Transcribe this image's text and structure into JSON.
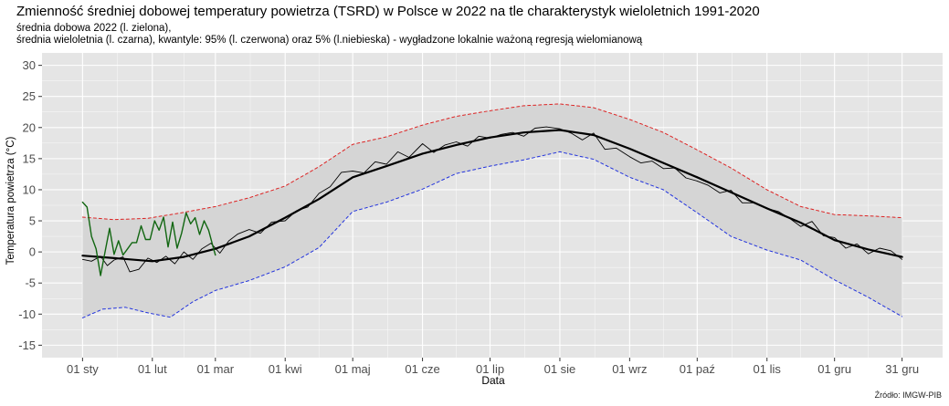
{
  "title": "Zmienność średniej dobowej temperatury powietrza (TSRD) w Polsce w 2022 na tle charakterystyk wieloletnich 1991-2020",
  "subtitle_line1": "średnia dobowa 2022 (l. zielona),",
  "subtitle_line2": "średnia wieloletnia (l. czarna), kwantyle: 95% (l. czerwona) oraz 5% (l.niebieska) - wygładzone lokalnie ważoną regresją wielomianową",
  "source": "Źródło: IMGW-PIB",
  "chart_data": {
    "type": "line",
    "xlabel": "Data",
    "ylabel": "Temperatura powietrza (°C)",
    "x_unit": "day of year 2022",
    "xlim": [
      1,
      365
    ],
    "ylim": [
      -17,
      32
    ],
    "yticks": [
      -15,
      -10,
      -5,
      0,
      5,
      10,
      15,
      20,
      25,
      30
    ],
    "xticks": [
      {
        "day": 1,
        "label": "01 sty"
      },
      {
        "day": 32,
        "label": "01 lut"
      },
      {
        "day": 60,
        "label": "01 mar"
      },
      {
        "day": 91,
        "label": "01 kwi"
      },
      {
        "day": 121,
        "label": "01 maj"
      },
      {
        "day": 152,
        "label": "01 cze"
      },
      {
        "day": 182,
        "label": "01 lip"
      },
      {
        "day": 213,
        "label": "01 sie"
      },
      {
        "day": 244,
        "label": "01 wrz"
      },
      {
        "day": 274,
        "label": "01 paź"
      },
      {
        "day": 305,
        "label": "01 lis"
      },
      {
        "day": 335,
        "label": "01 gru"
      },
      {
        "day": 365,
        "label": "31 gru"
      }
    ],
    "grid": true,
    "colors": {
      "panel": "#e5e5e5",
      "band": "#d5d5d5",
      "grid": "#ffffff",
      "q95": "#dd2222",
      "q5": "#2233dd",
      "mean": "#000000",
      "daily2022": "#116611"
    },
    "series": [
      {
        "name": "kwantyl 95%",
        "style": "dashed",
        "color": "#dd2222",
        "x": [
          1,
          15,
          30,
          45,
          60,
          75,
          91,
          106,
          121,
          136,
          152,
          167,
          182,
          197,
          213,
          228,
          244,
          259,
          274,
          289,
          305,
          320,
          335,
          350,
          365
        ],
        "y": [
          5.6,
          5.2,
          5.4,
          6.3,
          7.3,
          8.7,
          10.6,
          13.7,
          17.3,
          18.5,
          20.4,
          21.8,
          22.7,
          23.5,
          23.8,
          23.2,
          21.3,
          19.2,
          16.4,
          13.5,
          10.0,
          7.3,
          6.0,
          5.8,
          5.5
        ]
      },
      {
        "name": "kwantyl 5%",
        "style": "dashed",
        "color": "#2233dd",
        "x": [
          1,
          10,
          20,
          30,
          40,
          50,
          60,
          75,
          91,
          106,
          121,
          136,
          152,
          167,
          182,
          197,
          213,
          228,
          244,
          259,
          274,
          289,
          305,
          320,
          335,
          350,
          365
        ],
        "y": [
          -10.6,
          -9.2,
          -8.9,
          -9.8,
          -10.5,
          -8.0,
          -6.2,
          -4.6,
          -2.4,
          0.7,
          6.5,
          8.0,
          10.1,
          12.6,
          13.8,
          14.8,
          16.1,
          14.9,
          12.0,
          10.0,
          6.3,
          2.5,
          0.3,
          -1.3,
          -4.5,
          -7.3,
          -10.4
        ]
      },
      {
        "name": "średnia wieloletnia",
        "style": "solid-thick",
        "color": "#000000",
        "x": [
          1,
          15,
          32,
          46,
          60,
          75,
          91,
          106,
          121,
          136,
          152,
          167,
          182,
          197,
          213,
          228,
          244,
          259,
          274,
          289,
          305,
          320,
          335,
          350,
          365
        ],
        "y": [
          -0.6,
          -1.0,
          -1.5,
          -0.8,
          0.5,
          2.5,
          5.5,
          8.5,
          12.0,
          13.8,
          15.8,
          17.2,
          18.4,
          19.2,
          19.6,
          18.8,
          16.6,
          14.3,
          12.0,
          9.6,
          7.0,
          4.7,
          1.9,
          0.4,
          -0.8
        ]
      },
      {
        "name": "średnia wieloletnia (dzienna)",
        "style": "solid-thin",
        "color": "#000000",
        "x": [
          1,
          5,
          9,
          12,
          15,
          19,
          22,
          26,
          30,
          34,
          38,
          42,
          46,
          50,
          54,
          58,
          62,
          66,
          70,
          75,
          80,
          85,
          91,
          96,
          101,
          106,
          111,
          116,
          121,
          126,
          131,
          136,
          141,
          146,
          152,
          157,
          162,
          167,
          172,
          177,
          182,
          187,
          192,
          197,
          202,
          207,
          213,
          218,
          223,
          228,
          233,
          238,
          244,
          249,
          254,
          259,
          264,
          269,
          274,
          279,
          284,
          289,
          294,
          299,
          305,
          310,
          315,
          320,
          325,
          330,
          335,
          340,
          345,
          350,
          355,
          360,
          365
        ],
        "y": [
          -1.2,
          -1.5,
          -0.7,
          -2.2,
          -1.3,
          -0.8,
          -3.2,
          -2.8,
          -1.0,
          -1.7,
          -0.7,
          -1.9,
          0.0,
          -1.2,
          0.5,
          1.4,
          -0.2,
          1.8,
          2.9,
          3.6,
          3.0,
          4.8,
          5.0,
          6.6,
          7.2,
          9.4,
          10.5,
          12.8,
          13.0,
          12.7,
          14.5,
          14.1,
          16.1,
          15.2,
          17.4,
          16.0,
          17.2,
          17.7,
          17.0,
          18.6,
          18.3,
          18.9,
          19.2,
          18.6,
          19.9,
          20.1,
          19.8,
          19.1,
          18.0,
          19.1,
          16.5,
          16.7,
          15.3,
          14.3,
          14.6,
          13.4,
          13.5,
          11.9,
          11.4,
          10.7,
          9.5,
          9.9,
          7.9,
          7.9,
          7.0,
          6.5,
          5.4,
          4.1,
          4.9,
          2.6,
          2.3,
          0.6,
          1.3,
          -0.3,
          0.6,
          0.2,
          -1.2
        ]
      },
      {
        "name": "średnia dobowa 2022",
        "style": "solid",
        "color": "#116611",
        "x": [
          1,
          3,
          5,
          7,
          9,
          11,
          13,
          15,
          17,
          19,
          21,
          23,
          25,
          27,
          29,
          31,
          33,
          35,
          37,
          39,
          41,
          43,
          45,
          47,
          49,
          51,
          53,
          55,
          57,
          59,
          60
        ],
        "y": [
          8.0,
          7.2,
          2.5,
          0.5,
          -3.8,
          0.0,
          3.8,
          -0.4,
          1.8,
          -0.5,
          0.5,
          1.5,
          1.5,
          4.2,
          2.0,
          2.0,
          5.0,
          3.5,
          5.6,
          0.8,
          4.8,
          0.6,
          3.0,
          6.3,
          4.5,
          5.5,
          2.8,
          5.0,
          3.5,
          0.8,
          -0.5
        ]
      }
    ]
  }
}
